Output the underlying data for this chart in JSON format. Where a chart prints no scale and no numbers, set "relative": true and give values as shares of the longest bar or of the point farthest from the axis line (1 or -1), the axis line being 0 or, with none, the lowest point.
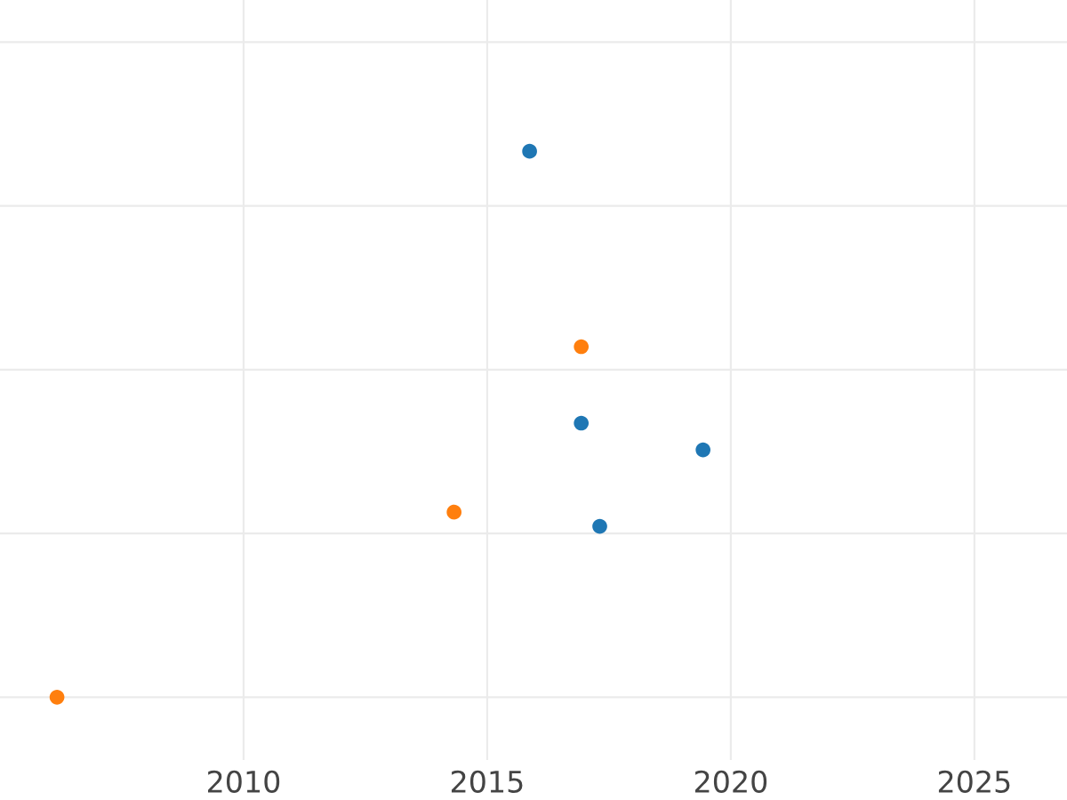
{
  "chart_data": {
    "type": "scatter",
    "relative": true,
    "xlim": [
      2005,
      2026.9
    ],
    "xticks": [
      2010,
      2015,
      2020,
      2025
    ],
    "grid": true,
    "marker": "circle",
    "series": [
      {
        "color": "#1f77b4",
        "x": [
          2015.87,
          2016.93,
          2019.43,
          2017.31
        ],
        "values": [
          1,
          0.502,
          0.453,
          0.313
        ]
      },
      {
        "color": "#ff7f0e",
        "x": [
          2016.93,
          2014.32,
          2006.17
        ],
        "values": [
          0.642,
          0.339,
          0
        ]
      }
    ]
  }
}
